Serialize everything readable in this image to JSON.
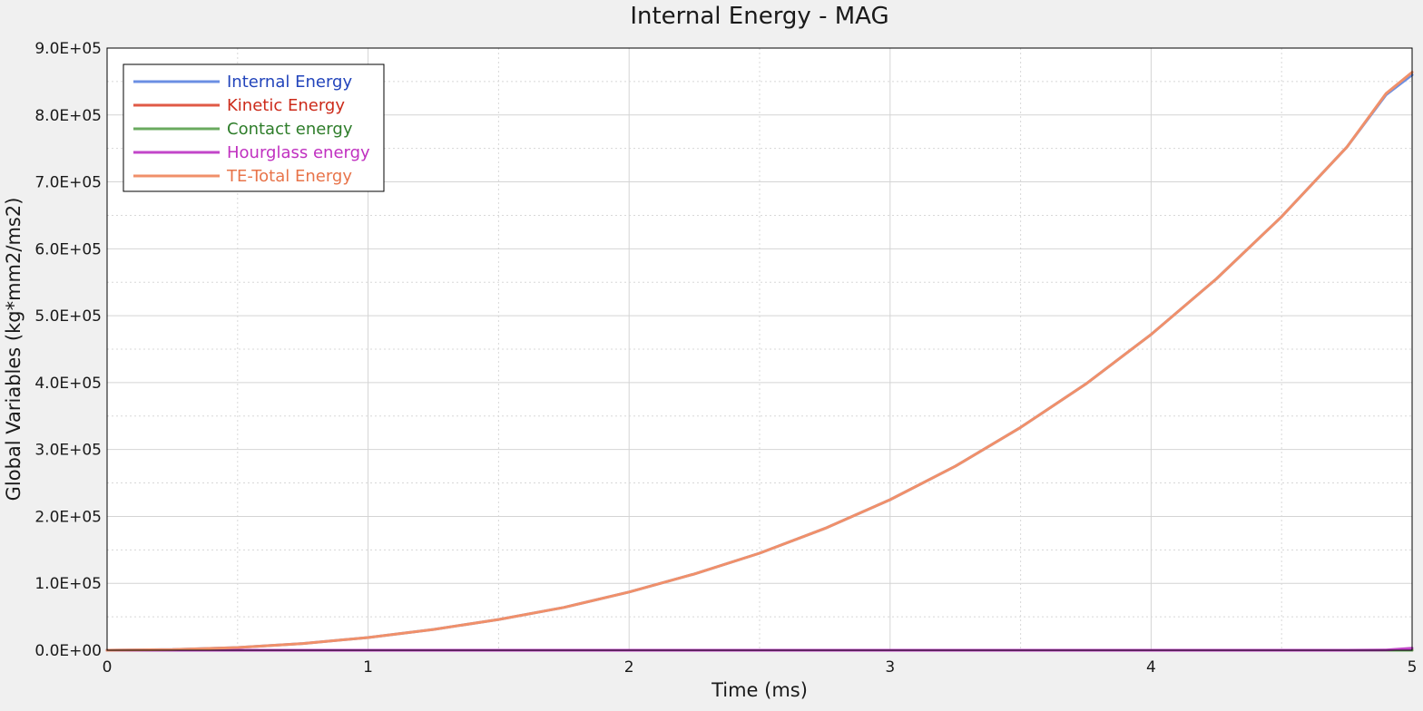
{
  "chart_data": {
    "type": "line",
    "title": "Internal Energy - MAG",
    "xlabel": "Time (ms)",
    "ylabel": "Global Variables (kg*mm2/ms2)",
    "xlim": [
      0,
      5
    ],
    "ylim": [
      0,
      900000
    ],
    "x_ticks": [
      0,
      1,
      2,
      3,
      4,
      5
    ],
    "x_tick_labels": [
      "0",
      "1",
      "2",
      "3",
      "4",
      "5"
    ],
    "y_ticks": [
      0,
      100000,
      200000,
      300000,
      400000,
      500000,
      600000,
      700000,
      800000,
      900000
    ],
    "y_tick_labels": [
      "0.0E+00",
      "1.0E+05",
      "2.0E+05",
      "3.0E+05",
      "4.0E+05",
      "5.0E+05",
      "6.0E+05",
      "7.0E+05",
      "8.0E+05",
      "9.0E+05"
    ],
    "grid": true,
    "legend_position": "top-left",
    "x": [
      0,
      0.25,
      0.5,
      0.75,
      1.0,
      1.25,
      1.5,
      1.75,
      2.0,
      2.25,
      2.5,
      2.75,
      3.0,
      3.25,
      3.5,
      3.75,
      4.0,
      4.25,
      4.5,
      4.75,
      4.9,
      5.0
    ],
    "series": [
      {
        "name": "Internal Energy",
        "line_color": "#6b8fe3",
        "label_color": "#2244bb",
        "values": [
          0,
          1000,
          4000,
          10000,
          19000,
          31000,
          46000,
          64000,
          87000,
          114000,
          145000,
          182000,
          225000,
          275000,
          333000,
          398000,
          472000,
          555000,
          648000,
          752000,
          830000,
          860000
        ]
      },
      {
        "name": "Kinetic Energy",
        "line_color": "#e05a46",
        "label_color": "#cc2a1a",
        "values": [
          0,
          0,
          0,
          0,
          0,
          0,
          0,
          0,
          0,
          0,
          0,
          0,
          0,
          0,
          0,
          0,
          0,
          0,
          0,
          0,
          0,
          0
        ]
      },
      {
        "name": "Contact energy",
        "line_color": "#6aaa5f",
        "label_color": "#2e7d2a",
        "values": [
          0,
          0,
          0,
          0,
          0,
          0,
          0,
          0,
          0,
          0,
          0,
          0,
          0,
          0,
          0,
          0,
          0,
          0,
          0,
          0,
          0,
          0
        ]
      },
      {
        "name": "Hourglass energy",
        "line_color": "#c246c9",
        "label_color": "#c030c0",
        "values": [
          0,
          0,
          0,
          0,
          0,
          0,
          0,
          0,
          0,
          0,
          0,
          0,
          0,
          0,
          0,
          0,
          0,
          0,
          0,
          0,
          400,
          3000
        ]
      },
      {
        "name": "TE-Total Energy",
        "line_color": "#f0906a",
        "label_color": "#e8744a",
        "values": [
          0,
          1000,
          4000,
          10000,
          19000,
          31000,
          46000,
          64000,
          87000,
          114000,
          145000,
          182000,
          225000,
          275000,
          333000,
          398000,
          472000,
          555000,
          648000,
          752000,
          832000,
          864000
        ]
      }
    ]
  }
}
